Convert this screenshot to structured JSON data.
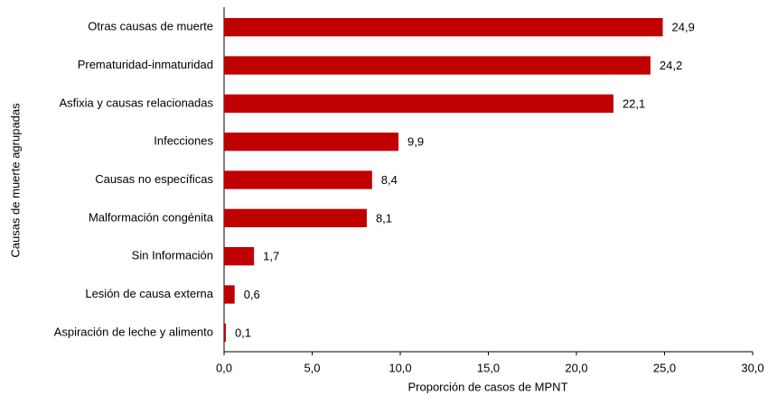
{
  "chart_data": {
    "type": "hbar",
    "categories": [
      "Otras causas de muerte",
      "Prematuridad-inmaturidad",
      "Asfixia y causas relacionadas",
      "Infecciones",
      "Causas no específicas",
      "Malformación congénita",
      "Sin Información",
      "Lesión de causa externa",
      "Aspiración de leche y alimento"
    ],
    "values": [
      24.9,
      24.2,
      22.1,
      9.9,
      8.4,
      8.1,
      1.7,
      0.6,
      0.1
    ],
    "value_labels": [
      "24,9",
      "24,2",
      "22,1",
      "9,9",
      "8,4",
      "8,1",
      "1,7",
      "0,6",
      "0,1"
    ],
    "color": "#c00000",
    "xlim": [
      0,
      30
    ],
    "xticks": [
      {
        "value": 0,
        "label": "0,0"
      },
      {
        "value": 5,
        "label": "5,0"
      },
      {
        "value": 10,
        "label": "10,0"
      },
      {
        "value": 15,
        "label": "15,0"
      },
      {
        "value": 20,
        "label": "20,0"
      },
      {
        "value": 25,
        "label": "25,0"
      },
      {
        "value": 30,
        "label": "30,0"
      }
    ],
    "x_label": "Proporción de casos de MPNT",
    "y_label": "Causas de muerte agrupadas"
  }
}
